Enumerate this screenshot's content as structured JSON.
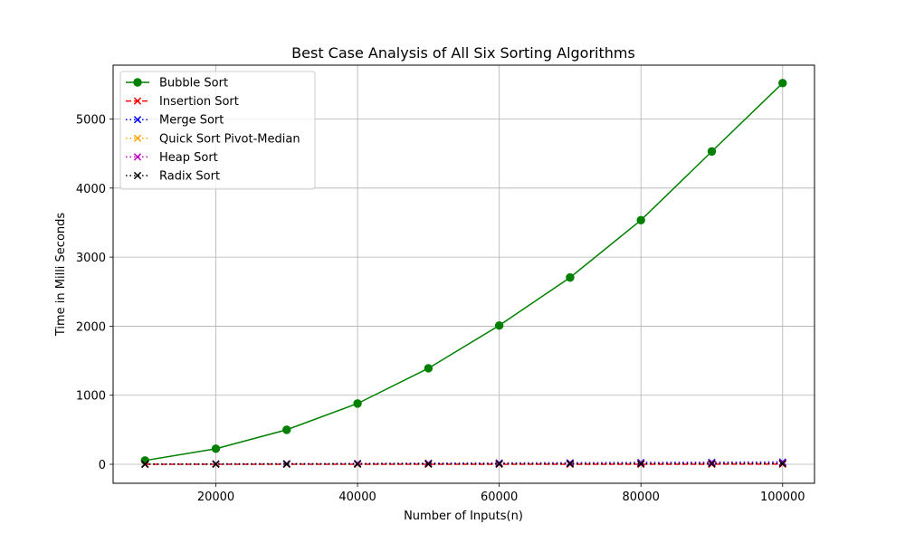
{
  "chart_data": {
    "type": "line",
    "title": "Best Case Analysis of All Six Sorting Algorithms",
    "xlabel": "Number of Inputs(n)",
    "ylabel": "Time in Milli Seconds",
    "xlim": [
      5500,
      104500
    ],
    "ylim": [
      -275,
      5780
    ],
    "xticks": [
      20000,
      40000,
      60000,
      80000,
      100000
    ],
    "yticks": [
      0,
      1000,
      2000,
      3000,
      4000,
      5000
    ],
    "grid": true,
    "legend_position": "top-left",
    "x": [
      10000,
      20000,
      30000,
      40000,
      50000,
      60000,
      70000,
      80000,
      90000,
      100000
    ],
    "series": [
      {
        "name": "Bubble Sort",
        "color": "#008000",
        "linestyle": "solid",
        "marker": "circle",
        "values": [
          55,
          225,
          500,
          880,
          1390,
          2010,
          2705,
          3535,
          4530,
          5520
        ]
      },
      {
        "name": "Insertion Sort",
        "color": "#ff0000",
        "linestyle": "dashed",
        "marker": "x",
        "values": [
          0,
          0,
          0,
          1,
          1,
          1,
          1,
          1,
          1,
          2
        ]
      },
      {
        "name": "Merge Sort",
        "color": "#0000ff",
        "linestyle": "dotted",
        "marker": "x",
        "values": [
          3,
          6,
          9,
          12,
          16,
          19,
          22,
          26,
          29,
          33
        ]
      },
      {
        "name": "Quick Sort Pivot-Median",
        "color": "#ffa500",
        "linestyle": "dotted",
        "marker": "x",
        "values": [
          1,
          3,
          5,
          6,
          8,
          10,
          12,
          14,
          16,
          18
        ]
      },
      {
        "name": "Heap Sort",
        "color": "#bf00bf",
        "linestyle": "dotted",
        "marker": "x",
        "values": [
          2,
          4,
          6,
          9,
          11,
          13,
          15,
          17,
          20,
          22
        ]
      },
      {
        "name": "Radix Sort",
        "color": "#000000",
        "linestyle": "dotted",
        "marker": "x",
        "values": [
          1,
          2,
          3,
          4,
          5,
          6,
          7,
          8,
          9,
          10
        ]
      }
    ]
  }
}
